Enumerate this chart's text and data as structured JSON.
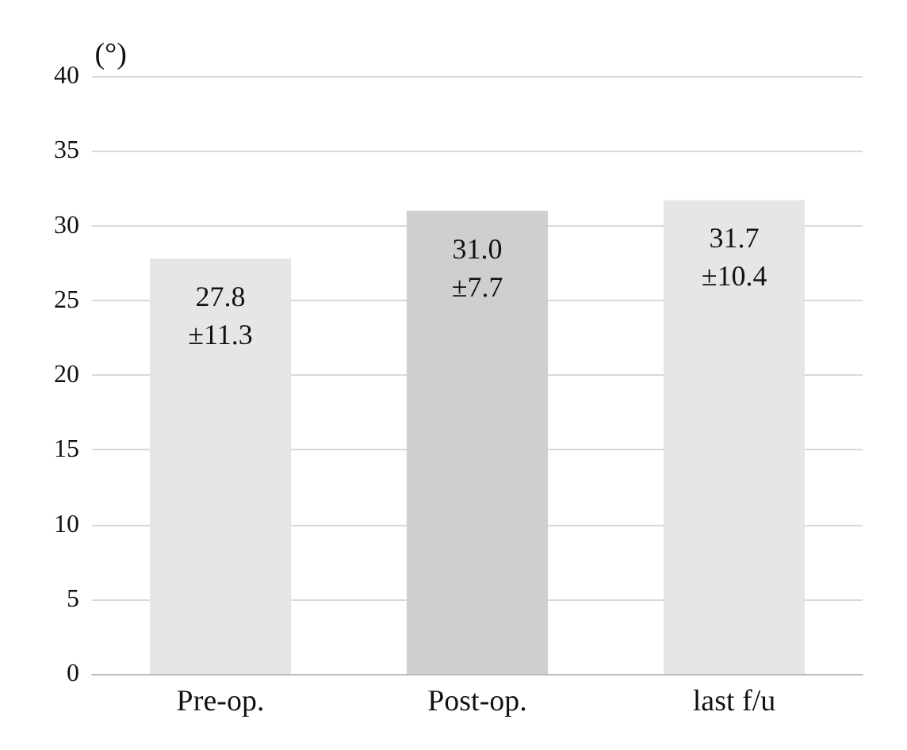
{
  "chart_data": {
    "type": "bar",
    "ylabel": "(°)",
    "categories": [
      "Pre-op.",
      "Post-op.",
      "last f/u"
    ],
    "values": [
      27.8,
      31.0,
      31.7
    ],
    "colors": [
      "#e6e6e6",
      "#cfcfcf",
      "#e6e6e6"
    ],
    "value_labels": [
      "27.8\n±11.3",
      "31.0\n±7.7",
      "31.7\n±10.4"
    ],
    "ylim": [
      0,
      40
    ],
    "yticks": [
      0,
      5,
      10,
      15,
      20,
      25,
      30,
      35,
      40
    ],
    "grid": "y"
  }
}
